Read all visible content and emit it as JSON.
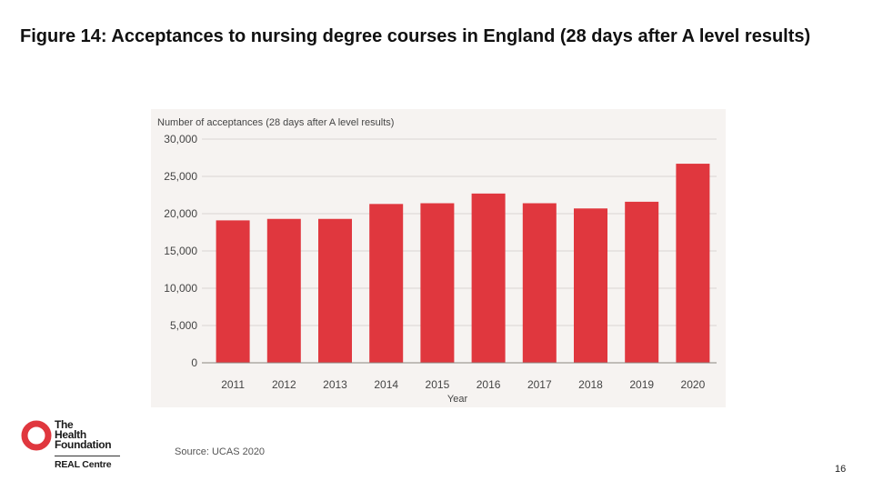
{
  "title": "Figure 14: Acceptances to nursing degree courses in England (28 days after A level results)",
  "source": "Source: UCAS 2020",
  "page_number": "16",
  "logo": {
    "line1": "The",
    "line2": "Health",
    "line3": "Foundation",
    "sub": "REAL Centre"
  },
  "colors": {
    "bar": "#e0373e",
    "grid": "#d9d5d2",
    "axis": "#8a8580",
    "text": "#444444",
    "logo_red": "#e0373e"
  },
  "chart_data": {
    "type": "bar",
    "title": "",
    "ylabel": "Number of acceptances (28 days after A level results)",
    "xlabel": "Year",
    "categories": [
      "2011",
      "2012",
      "2013",
      "2014",
      "2015",
      "2016",
      "2017",
      "2018",
      "2019",
      "2020"
    ],
    "values": [
      19100,
      19300,
      19300,
      21300,
      21400,
      22700,
      21400,
      20700,
      21600,
      26700
    ],
    "ylim": [
      0,
      30000
    ],
    "yticks": [
      0,
      5000,
      10000,
      15000,
      20000,
      25000,
      30000
    ],
    "ytick_labels": [
      "0",
      "5,000",
      "10,000",
      "15,000",
      "20,000",
      "25,000",
      "30,000"
    ],
    "grid": true
  }
}
